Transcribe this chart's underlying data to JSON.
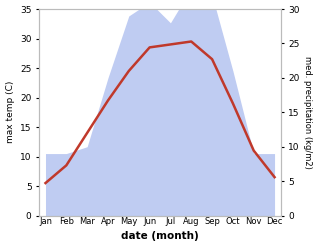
{
  "months": [
    "Jan",
    "Feb",
    "Mar",
    "Apr",
    "May",
    "Jun",
    "Jul",
    "Aug",
    "Sep",
    "Oct",
    "Nov",
    "Dec"
  ],
  "temp": [
    5.5,
    8.5,
    14.0,
    19.5,
    24.5,
    28.5,
    29.0,
    29.5,
    26.5,
    19.0,
    11.0,
    6.5
  ],
  "precip": [
    9,
    9,
    10,
    20,
    29,
    31,
    28,
    33,
    32,
    21,
    9,
    9
  ],
  "temp_ylim": [
    0,
    35
  ],
  "precip_ylim": [
    0,
    30
  ],
  "temp_yticks": [
    0,
    5,
    10,
    15,
    20,
    25,
    30,
    35
  ],
  "precip_yticks": [
    0,
    5,
    10,
    15,
    20,
    25,
    30
  ],
  "temp_color": "#c0392b",
  "precip_fill_color": "#aabbee",
  "precip_fill_alpha": 0.75,
  "ylabel_left": "max temp (C)",
  "ylabel_right": "med. precipitation (kg/m2)",
  "xlabel": "date (month)",
  "bg_color": "#ffffff",
  "temp_linewidth": 1.8
}
